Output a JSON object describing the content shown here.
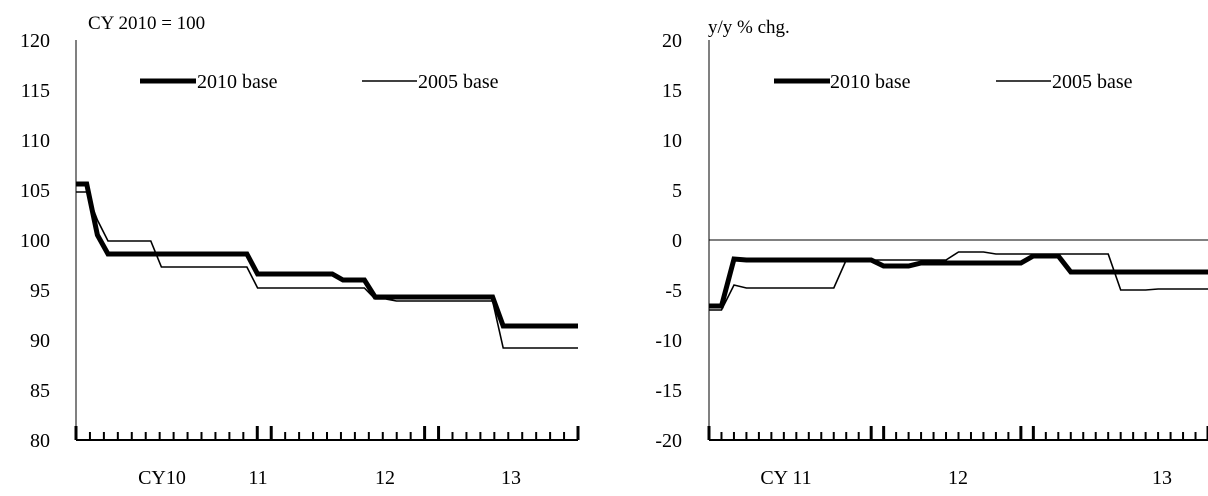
{
  "chart_data": [
    {
      "type": "line",
      "ylabel": "CY 2010 = 100",
      "ylim": [
        80,
        120
      ],
      "yticks": [
        "120",
        "115",
        "110",
        "105",
        "100",
        "95",
        "90",
        "85",
        "80"
      ],
      "x_period_labels": [
        "CY10",
        "11",
        "12",
        "13"
      ],
      "legend_position": "top",
      "grid": false,
      "series": [
        {
          "name": "2010 base",
          "values": [
            105.6,
            105.6,
            100.5,
            98.6,
            98.6,
            98.6,
            98.6,
            98.6,
            98.6,
            98.6,
            98.6,
            98.6,
            98.6,
            98.6,
            98.6,
            98.6,
            98.6,
            96.6,
            96.6,
            96.6,
            96.6,
            96.6,
            96.6,
            96.6,
            96.6,
            96.0,
            96.0,
            96.0,
            94.3,
            94.3,
            94.3,
            94.3,
            94.3,
            94.3,
            94.3,
            94.3,
            94.3,
            94.3,
            94.3,
            94.3,
            91.4,
            91.4,
            91.4,
            91.4,
            91.4,
            91.4,
            91.4,
            91.4
          ]
        },
        {
          "name": "2005 base",
          "values": [
            104.8,
            104.8,
            102.0,
            99.9,
            99.9,
            99.9,
            99.9,
            99.9,
            97.3,
            97.3,
            97.3,
            97.3,
            97.3,
            97.3,
            97.3,
            97.3,
            97.3,
            95.2,
            95.2,
            95.2,
            95.2,
            95.2,
            95.2,
            95.2,
            95.2,
            95.2,
            95.2,
            95.2,
            94.1,
            94.1,
            93.9,
            93.9,
            93.9,
            93.9,
            93.9,
            93.9,
            93.9,
            93.9,
            93.9,
            93.9,
            89.2,
            89.2,
            89.2,
            89.2,
            89.2,
            89.2,
            89.2,
            89.2
          ]
        }
      ]
    },
    {
      "type": "line",
      "ylabel": "y/y % chg.",
      "ylim": [
        -20,
        20
      ],
      "yticks": [
        "20",
        "15",
        "10",
        "5",
        "0",
        "-5",
        "-10",
        "-15",
        "-20"
      ],
      "x_period_labels": [
        "CY  11",
        "12",
        "13"
      ],
      "legend_position": "top",
      "grid": false,
      "zero_line": true,
      "series": [
        {
          "name": "2010 base",
          "values": [
            -6.6,
            -6.6,
            -1.9,
            -2.0,
            -2.0,
            -2.0,
            -2.0,
            -2.0,
            -2.0,
            -2.0,
            -2.0,
            -2.0,
            -2.0,
            -2.0,
            -2.6,
            -2.6,
            -2.6,
            -2.3,
            -2.3,
            -2.3,
            -2.3,
            -2.3,
            -2.3,
            -2.3,
            -2.3,
            -2.3,
            -1.6,
            -1.6,
            -1.6,
            -3.2,
            -3.2,
            -3.2,
            -3.2,
            -3.2,
            -3.2,
            -3.2,
            -3.2,
            -3.2,
            -3.2,
            -3.2,
            -3.2
          ]
        },
        {
          "name": "2005 base",
          "values": [
            -7.0,
            -7.0,
            -4.5,
            -4.8,
            -4.8,
            -4.8,
            -4.8,
            -4.8,
            -4.8,
            -4.8,
            -4.8,
            -2.0,
            -2.0,
            -2.0,
            -2.0,
            -2.0,
            -2.0,
            -2.0,
            -2.0,
            -2.0,
            -1.2,
            -1.2,
            -1.2,
            -1.4,
            -1.4,
            -1.4,
            -1.4,
            -1.4,
            -1.4,
            -1.4,
            -1.4,
            -1.4,
            -1.4,
            -5.0,
            -5.0,
            -5.0,
            -4.9,
            -4.9,
            -4.9,
            -4.9,
            -4.9
          ]
        }
      ]
    }
  ]
}
